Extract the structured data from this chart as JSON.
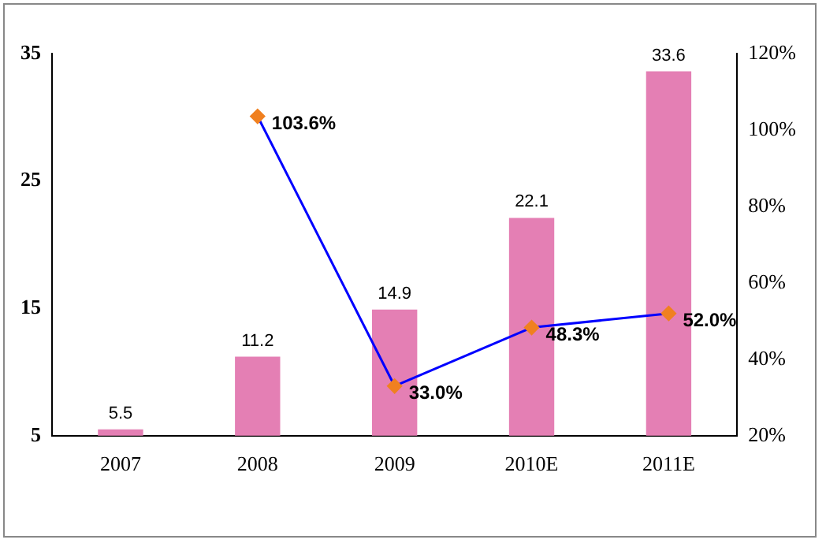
{
  "chart_data": {
    "type": "bar",
    "categories": [
      "2007",
      "2008",
      "2009",
      "2010E",
      "2011E"
    ],
    "series": [
      {
        "color": "#e47fb4",
        "values": [
          5.5,
          11.2,
          14.9,
          22.1,
          33.6
        ],
        "value_labels": [
          "5.5",
          "11.2",
          "14.9",
          "22.1",
          "33.6"
        ]
      },
      {
        "type": "line",
        "axis": "y2",
        "color": "#0000ff",
        "values": [
          null,
          103.6,
          33.0,
          48.3,
          52.0
        ],
        "value_labels": [
          null,
          "103.6%",
          "33.0%",
          "48.3%",
          "52.0%"
        ]
      }
    ],
    "ylim": [
      5,
      35
    ],
    "yticks": [
      5,
      15,
      25,
      35
    ],
    "y2lim": [
      20,
      120
    ],
    "y2ticks": [
      {
        "value": 20,
        "label": "20%"
      },
      {
        "value": 40,
        "label": "40%"
      },
      {
        "value": 60,
        "label": "60%"
      },
      {
        "value": 80,
        "label": "80%"
      },
      {
        "value": 100,
        "label": "100%"
      },
      {
        "value": 120,
        "label": "120%"
      }
    ],
    "marker": "diamond",
    "grid": false,
    "legend": false
  }
}
